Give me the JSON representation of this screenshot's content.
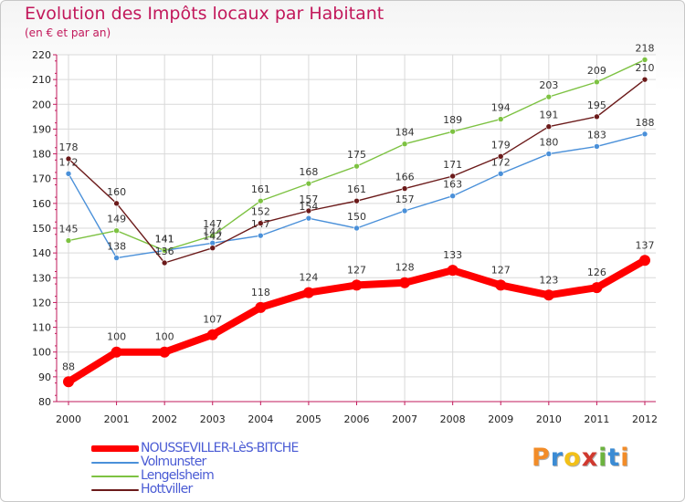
{
  "header": {
    "title": "Evolution des Impôts locaux par Habitant",
    "subtitle": "(en € et par an)"
  },
  "brand": {
    "name": "Proxiti",
    "letter_colors": [
      "#f28c28",
      "#3b8bd4",
      "#f2c018",
      "#d0392f",
      "#6cb33f",
      "#3b8bd4",
      "#f28c28"
    ]
  },
  "chart_data": {
    "type": "line",
    "title": "Evolution des Impôts locaux par Habitant",
    "subtitle": "(en € et par an)",
    "xlabel": "",
    "ylabel": "",
    "x": [
      "2000",
      "2001",
      "2002",
      "2003",
      "2004",
      "2005",
      "2006",
      "2007",
      "2008",
      "2009",
      "2010",
      "2011",
      "2012"
    ],
    "ylim": [
      80,
      220
    ],
    "yticks": [
      80,
      90,
      100,
      110,
      120,
      130,
      140,
      150,
      160,
      170,
      180,
      190,
      200,
      210,
      220
    ],
    "grid": true,
    "legend_position": "bottom-left",
    "series": [
      {
        "name": "Volmunster",
        "color": "#4a90d9",
        "values": [
          172,
          138,
          141,
          144,
          147,
          154,
          150,
          157,
          163,
          172,
          180,
          183,
          188
        ],
        "labels": [
          "172",
          "138",
          "141",
          "144",
          "147",
          "154",
          "150",
          "157",
          "163",
          "172",
          "180",
          "183",
          "188"
        ]
      },
      {
        "name": "Lengelsheim",
        "color": "#7dc242",
        "values": [
          145,
          149,
          141,
          147,
          161,
          168,
          175,
          184,
          189,
          194,
          203,
          209,
          218
        ],
        "labels": [
          "145",
          "149",
          "141",
          "147",
          "161",
          "168",
          "175",
          "184",
          "189",
          "194",
          "203",
          "209",
          "218"
        ]
      },
      {
        "name": "Hottviller",
        "color": "#6b1a1a",
        "values": [
          178,
          160,
          136,
          142,
          152,
          157,
          161,
          166,
          171,
          179,
          191,
          195,
          210
        ],
        "labels": [
          "178",
          "160",
          "136",
          "142",
          "152",
          "157",
          "161",
          "166",
          "171",
          "179",
          "191",
          "195",
          "210"
        ]
      },
      {
        "name": "NOUSSEVILLER-LèS-BITCHE",
        "color": "#ff0000",
        "values": [
          88,
          100,
          100,
          107,
          118,
          124,
          127,
          128,
          133,
          127,
          123,
          126,
          137
        ],
        "labels": [
          "88",
          "100",
          "100",
          "107",
          "118",
          "124",
          "127",
          "128",
          "133",
          "127",
          "123",
          "126",
          "137"
        ]
      }
    ]
  }
}
